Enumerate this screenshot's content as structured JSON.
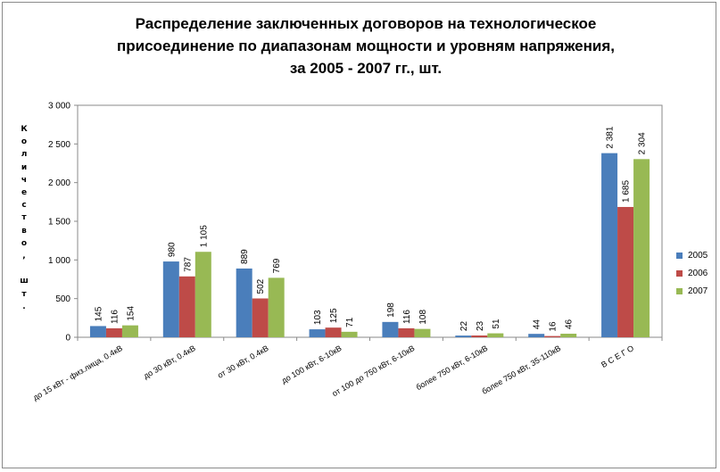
{
  "chart_data": {
    "type": "bar",
    "title_lines": [
      "Распределение заключенных договоров на технологическое",
      "присоединение по диапазонам мощности и уровням напряжения,",
      "за 2005 - 2007 гг., шт."
    ],
    "ylabel": "Количество, шт.",
    "ylim": [
      0,
      3000
    ],
    "yticks": [
      0,
      500,
      1000,
      1500,
      2000,
      2500,
      3000
    ],
    "ytick_labels": [
      "0",
      "500",
      "1 000",
      "1 500",
      "2 000",
      "2 500",
      "3 000"
    ],
    "categories": [
      "до 15 кВт - физ.лица, 0.4кВ",
      "до 30 кВт, 0.4кВ",
      "от 30 кВт, 0.4кВ",
      "до 100 кВт, 6-10кВ",
      "от 100 до 750 кВт, 6-10кВ",
      "более 750 кВт, 6-10кВ",
      "более 750 кВт, 35-110кВ",
      "В С Е Г О"
    ],
    "series": [
      {
        "name": "2005",
        "color": "#4a7ebb",
        "values": [
          145,
          980,
          889,
          103,
          198,
          22,
          44,
          2381
        ],
        "labels": [
          "145",
          "980",
          "889",
          "103",
          "198",
          "22",
          "44",
          "2 381"
        ]
      },
      {
        "name": "2006",
        "color": "#be4b48",
        "values": [
          116,
          787,
          502,
          125,
          116,
          23,
          16,
          1685
        ],
        "labels": [
          "116",
          "787",
          "502",
          "125",
          "116",
          "23",
          "16",
          "1 685"
        ]
      },
      {
        "name": "2007",
        "color": "#98b954",
        "values": [
          154,
          1105,
          769,
          71,
          108,
          51,
          46,
          2304
        ],
        "labels": [
          "154",
          "1 105",
          "769",
          "71",
          "108",
          "51",
          "46",
          "2 304"
        ]
      }
    ],
    "grid": false,
    "legend_position": "right"
  }
}
